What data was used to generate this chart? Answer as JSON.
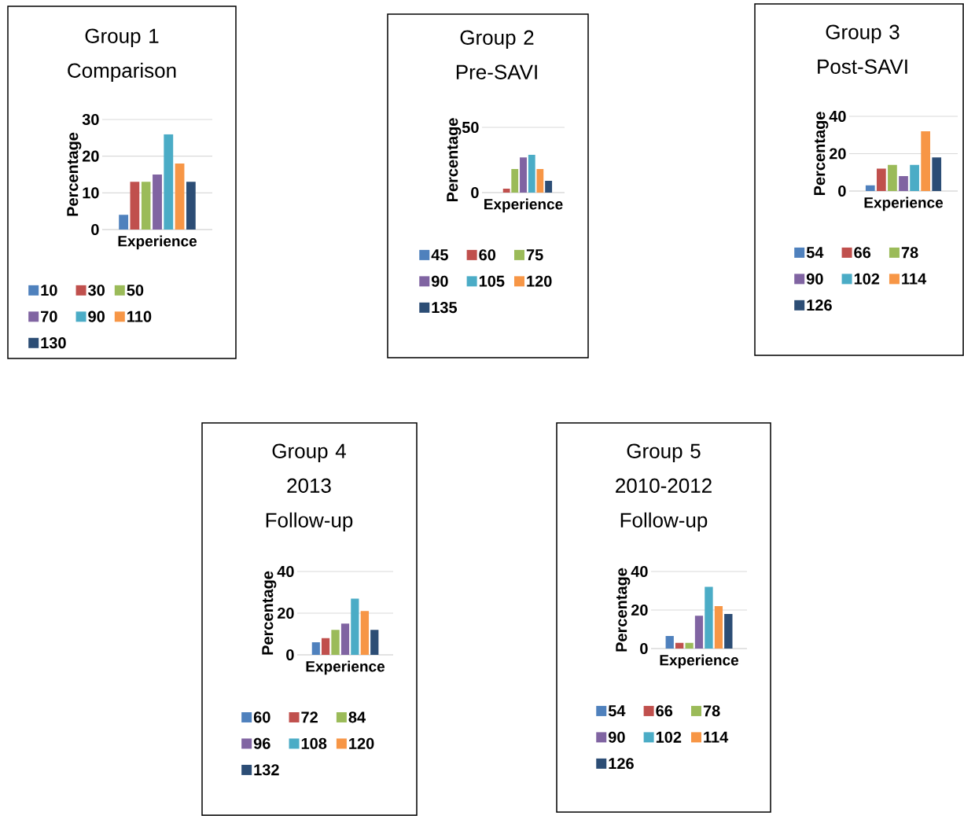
{
  "chart_data": [
    {
      "type": "bar",
      "title": "Group 1",
      "subtitle": "Comparison",
      "xlabel": "Experience",
      "ylabel": "Percentage",
      "categories": [
        null
      ],
      "ylim": [
        0,
        30
      ],
      "yticks": [
        0,
        10,
        20,
        30
      ],
      "grid": "y",
      "legend": "bottom",
      "series": [
        {
          "name": "10",
          "color": "#4f81bd",
          "values": [
            4
          ]
        },
        {
          "name": "30",
          "color": "#c0504d",
          "values": [
            13
          ]
        },
        {
          "name": "50",
          "color": "#9bbb59",
          "values": [
            13
          ]
        },
        {
          "name": "70",
          "color": "#8064a2",
          "values": [
            15
          ]
        },
        {
          "name": "90",
          "color": "#4bacc6",
          "values": [
            26
          ]
        },
        {
          "name": "110",
          "color": "#f79646",
          "values": [
            18
          ]
        },
        {
          "name": "130",
          "color": "#2c4d75",
          "values": [
            13
          ]
        }
      ]
    },
    {
      "type": "bar",
      "title": "Group 2",
      "subtitle": "Pre-SAVI",
      "xlabel": "Experience",
      "ylabel": "Percentage",
      "categories": [
        null
      ],
      "ylim": [
        0,
        50
      ],
      "yticks": [
        0,
        50
      ],
      "grid": "y",
      "legend": "bottom",
      "series": [
        {
          "name": "45",
          "color": "#4f81bd",
          "values": [
            0
          ]
        },
        {
          "name": "60",
          "color": "#c0504d",
          "values": [
            3
          ]
        },
        {
          "name": "75",
          "color": "#9bbb59",
          "values": [
            18
          ]
        },
        {
          "name": "90",
          "color": "#8064a2",
          "values": [
            27
          ]
        },
        {
          "name": "105",
          "color": "#4bacc6",
          "values": [
            29
          ]
        },
        {
          "name": "120",
          "color": "#f79646",
          "values": [
            18
          ]
        },
        {
          "name": "135",
          "color": "#2c4d75",
          "values": [
            9
          ]
        }
      ]
    },
    {
      "type": "bar",
      "title": "Group 3",
      "subtitle": "Post-SAVI",
      "xlabel": "Experience",
      "ylabel": "Percentage",
      "categories": [
        null
      ],
      "ylim": [
        0,
        40
      ],
      "yticks": [
        0,
        20,
        40
      ],
      "grid": "y",
      "legend": "bottom",
      "series": [
        {
          "name": "54",
          "color": "#4f81bd",
          "values": [
            3
          ]
        },
        {
          "name": "66",
          "color": "#c0504d",
          "values": [
            12
          ]
        },
        {
          "name": "78",
          "color": "#9bbb59",
          "values": [
            14
          ]
        },
        {
          "name": "90",
          "color": "#8064a2",
          "values": [
            8
          ]
        },
        {
          "name": "102",
          "color": "#4bacc6",
          "values": [
            14
          ]
        },
        {
          "name": "114",
          "color": "#f79646",
          "values": [
            32
          ]
        },
        {
          "name": "126",
          "color": "#2c4d75",
          "values": [
            18
          ]
        }
      ]
    },
    {
      "type": "bar",
      "title": "Group 4",
      "subtitle": "2013 Follow-up",
      "xlabel": "Experience",
      "ylabel": "Percentage",
      "categories": [
        null
      ],
      "ylim": [
        0,
        40
      ],
      "yticks": [
        0,
        20,
        40
      ],
      "grid": "y",
      "legend": "bottom",
      "series": [
        {
          "name": "60",
          "color": "#4f81bd",
          "values": [
            6
          ]
        },
        {
          "name": "72",
          "color": "#c0504d",
          "values": [
            8
          ]
        },
        {
          "name": "84",
          "color": "#9bbb59",
          "values": [
            12
          ]
        },
        {
          "name": "96",
          "color": "#8064a2",
          "values": [
            15
          ]
        },
        {
          "name": "108",
          "color": "#4bacc6",
          "values": [
            27
          ]
        },
        {
          "name": "120",
          "color": "#f79646",
          "values": [
            21
          ]
        },
        {
          "name": "132",
          "color": "#2c4d75",
          "values": [
            12
          ]
        }
      ]
    },
    {
      "type": "bar",
      "title": "Group 5",
      "subtitle": "2010-2012 Follow-up",
      "xlabel": "Experience",
      "ylabel": "Percentage",
      "categories": [
        null
      ],
      "ylim": [
        0,
        40
      ],
      "yticks": [
        0,
        20,
        40
      ],
      "grid": "y",
      "legend": "bottom",
      "series": [
        {
          "name": "54",
          "color": "#4f81bd",
          "values": [
            6.5
          ]
        },
        {
          "name": "66",
          "color": "#c0504d",
          "values": [
            3
          ]
        },
        {
          "name": "78",
          "color": "#9bbb59",
          "values": [
            3
          ]
        },
        {
          "name": "90",
          "color": "#8064a2",
          "values": [
            17
          ]
        },
        {
          "name": "102",
          "color": "#4bacc6",
          "values": [
            32
          ]
        },
        {
          "name": "114",
          "color": "#f79646",
          "values": [
            22
          ]
        },
        {
          "name": "126",
          "color": "#2c4d75",
          "values": [
            18
          ]
        }
      ]
    }
  ]
}
